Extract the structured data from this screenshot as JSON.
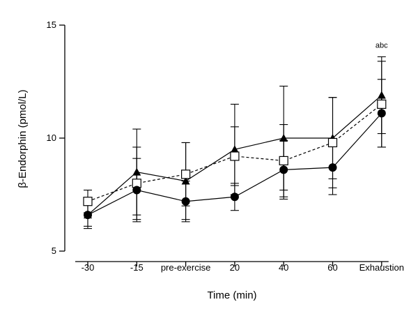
{
  "chart_data": {
    "type": "line",
    "title": "",
    "xlabel": "Time (min)",
    "ylabel": "β-Endorphin (pmol/L)",
    "ylim": [
      5,
      15
    ],
    "yticks": [
      5,
      10,
      15
    ],
    "categories": [
      "-30",
      "-15",
      "pre-exercise",
      "20",
      "40",
      "60",
      "Exhaustion"
    ],
    "series": [
      {
        "name": "Series 1 (filled triangle, solid line)",
        "marker": "triangle",
        "line": "solid",
        "values": [
          6.6,
          8.5,
          8.1,
          9.5,
          10.0,
          10.0,
          11.9
        ],
        "error": [
          0.6,
          1.9,
          1.7,
          2.0,
          2.3,
          1.8,
          1.7
        ]
      },
      {
        "name": "Series 2 (open square, dashed line)",
        "marker": "square",
        "line": "dashed",
        "values": [
          7.2,
          8.0,
          8.4,
          9.2,
          9.0,
          9.8,
          11.5
        ],
        "error": [
          0.5,
          1.6,
          1.4,
          1.3,
          1.6,
          2.0,
          1.9
        ]
      },
      {
        "name": "Series 3 (filled circle, solid line)",
        "marker": "circle",
        "line": "solid",
        "values": [
          6.6,
          7.7,
          7.2,
          7.4,
          8.6,
          8.7,
          11.1
        ],
        "error": [
          0.5,
          1.4,
          0.9,
          0.6,
          1.3,
          1.2,
          1.5
        ]
      }
    ],
    "annotations": [
      {
        "text": "abc",
        "category": "Exhaustion",
        "y": 14.0
      }
    ]
  }
}
